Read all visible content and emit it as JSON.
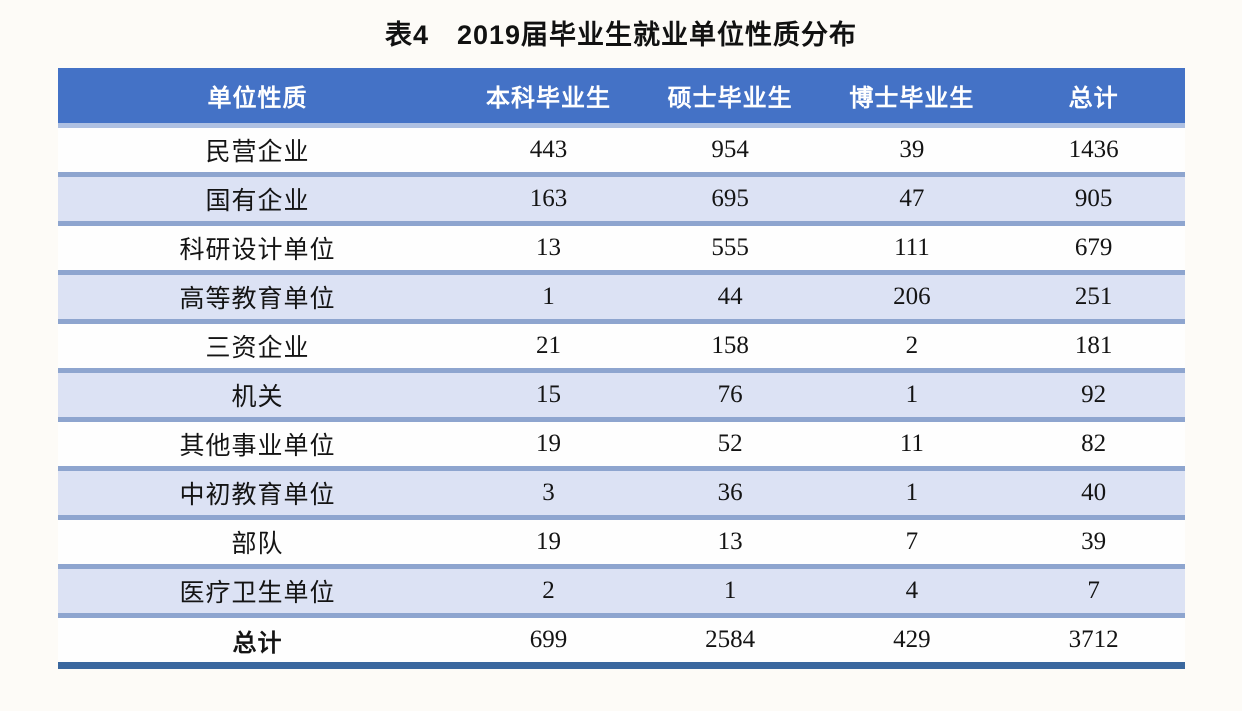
{
  "title": "表4　2019届毕业生就业单位性质分布",
  "colors": {
    "page_bg": "#FDFBF7",
    "header_bg": "#4472C6",
    "header_text": "#FFFFFF",
    "header_rule": "#AEC0E2",
    "stripe_bg": "#DCE2F4",
    "row_rule": "#8EA5CF",
    "bottom_rule": "#3A679E"
  },
  "table": {
    "headers": [
      "单位性质",
      "本科毕业生",
      "硕士毕业生",
      "博士毕业生",
      "总计"
    ],
    "rows": [
      {
        "label": "民营企业",
        "values": [
          "443",
          "954",
          "39",
          "1436"
        ]
      },
      {
        "label": "国有企业",
        "values": [
          "163",
          "695",
          "47",
          "905"
        ]
      },
      {
        "label": "科研设计单位",
        "values": [
          "13",
          "555",
          "111",
          "679"
        ]
      },
      {
        "label": "高等教育单位",
        "values": [
          "1",
          "44",
          "206",
          "251"
        ]
      },
      {
        "label": "三资企业",
        "values": [
          "21",
          "158",
          "2",
          "181"
        ]
      },
      {
        "label": "机关",
        "values": [
          "15",
          "76",
          "1",
          "92"
        ]
      },
      {
        "label": "其他事业单位",
        "values": [
          "19",
          "52",
          "11",
          "82"
        ]
      },
      {
        "label": "中初教育单位",
        "values": [
          "3",
          "36",
          "1",
          "40"
        ]
      },
      {
        "label": "部队",
        "values": [
          "19",
          "13",
          "7",
          "39"
        ]
      },
      {
        "label": "医疗卫生单位",
        "values": [
          "2",
          "1",
          "4",
          "7"
        ]
      }
    ],
    "footer": {
      "label": "总计",
      "values": [
        "699",
        "2584",
        "429",
        "3712"
      ]
    }
  },
  "chart_data": {
    "type": "table",
    "title": "表4 2019届毕业生就业单位性质分布",
    "columns": [
      "单位性质",
      "本科毕业生",
      "硕士毕业生",
      "博士毕业生",
      "总计"
    ],
    "categories": [
      "民营企业",
      "国有企业",
      "科研设计单位",
      "高等教育单位",
      "三资企业",
      "机关",
      "其他事业单位",
      "中初教育单位",
      "部队",
      "医疗卫生单位"
    ],
    "series": [
      {
        "name": "本科毕业生",
        "values": [
          443,
          163,
          13,
          1,
          21,
          15,
          19,
          3,
          19,
          2
        ]
      },
      {
        "name": "硕士毕业生",
        "values": [
          954,
          695,
          555,
          44,
          158,
          76,
          52,
          36,
          13,
          1
        ]
      },
      {
        "name": "博士毕业生",
        "values": [
          39,
          47,
          111,
          206,
          2,
          1,
          11,
          1,
          7,
          4
        ]
      },
      {
        "name": "总计",
        "values": [
          1436,
          905,
          679,
          251,
          181,
          92,
          82,
          40,
          39,
          7
        ]
      }
    ],
    "totals": {
      "本科毕业生": 699,
      "硕士毕业生": 2584,
      "博士毕业生": 429,
      "总计": 3712
    }
  }
}
